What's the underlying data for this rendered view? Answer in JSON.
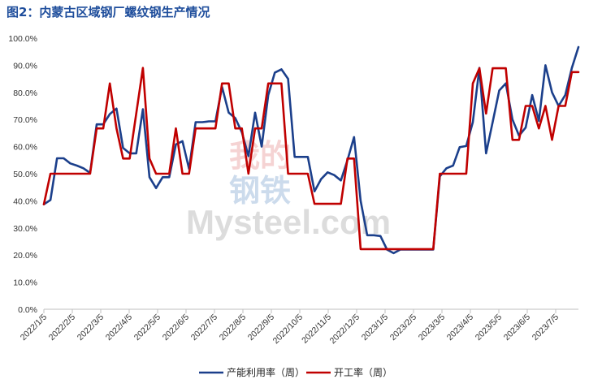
{
  "title": "图2：内蒙古区域钢厂螺纹钢生产情况",
  "watermark": {
    "cn1": "我的",
    "cn2": "钢铁",
    "brand": "Mysteel.com"
  },
  "colors": {
    "capacity": "#1b3f8b",
    "operating": "#c00000",
    "axis": "#bfbfbf",
    "title": "#1f4e9c"
  },
  "chart_data": {
    "type": "line",
    "title": "图2：内蒙古区域钢厂螺纹钢生产情况",
    "xlabel": "",
    "ylabel": "",
    "ylim": [
      0,
      100
    ],
    "y_ticks": [
      "0.0%",
      "10.0%",
      "20.0%",
      "30.0%",
      "40.0%",
      "50.0%",
      "60.0%",
      "70.0%",
      "80.0%",
      "90.0%",
      "100.0%"
    ],
    "x_tick_labels": [
      "2022/1/5",
      "2022/2/5",
      "2022/3/5",
      "2022/4/5",
      "2022/5/5",
      "2022/6/5",
      "2022/7/5",
      "2022/8/5",
      "2022/9/5",
      "2022/10/5",
      "2022/11/5",
      "2022/12/5",
      "2023/1/5",
      "2023/2/5",
      "2023/3/5",
      "2023/4/5",
      "2023/5/5",
      "2023/6/5",
      "2023/7/5"
    ],
    "legend_position": "bottom",
    "grid": false,
    "series": [
      {
        "name": "产能利用率（周）",
        "color": "#1b3f8b",
        "values": [
          38.7,
          40.3,
          55.7,
          55.7,
          53.8,
          53.0,
          52.0,
          50.3,
          68.2,
          68.2,
          72.0,
          74.0,
          59.5,
          57.5,
          57.5,
          73.8,
          48.7,
          44.7,
          48.7,
          48.7,
          60.8,
          62.0,
          51.8,
          69.0,
          69.0,
          69.3,
          69.3,
          82.0,
          72.5,
          70.5,
          65.3,
          56.5,
          72.5,
          60.0,
          79.0,
          87.3,
          88.5,
          85.0,
          56.2,
          56.2,
          56.2,
          43.5,
          48.0,
          50.5,
          49.5,
          47.5,
          55.0,
          63.5,
          40.0,
          27.3,
          27.3,
          27.0,
          22.0,
          20.7,
          22.0,
          22.0,
          22.0,
          22.0,
          22.0,
          22.0,
          49.0,
          52.0,
          53.0,
          59.8,
          60.2,
          69.0,
          89.0,
          57.5,
          69.0,
          80.7,
          83.3,
          70.0,
          64.0,
          67.0,
          79.0,
          69.5,
          90.0,
          80.0,
          75.0,
          79.0,
          89.0,
          96.7
        ]
      },
      {
        "name": "开工率（周）",
        "color": "#c00000",
        "values": [
          38.7,
          50.0,
          50.0,
          50.0,
          50.0,
          50.0,
          50.0,
          50.0,
          66.7,
          66.7,
          83.3,
          66.7,
          55.6,
          55.6,
          72.2,
          89.0,
          55.6,
          50.0,
          50.0,
          50.0,
          66.7,
          50.0,
          50.0,
          66.7,
          66.7,
          66.7,
          66.7,
          83.3,
          83.3,
          66.7,
          66.7,
          50.0,
          66.7,
          66.7,
          83.3,
          83.3,
          83.3,
          50.0,
          50.0,
          50.0,
          50.0,
          38.9,
          38.9,
          38.9,
          38.9,
          38.9,
          55.6,
          55.6,
          22.2,
          22.2,
          22.2,
          22.2,
          22.2,
          22.2,
          22.2,
          22.2,
          22.2,
          22.2,
          22.2,
          22.2,
          50.0,
          50.0,
          50.0,
          50.0,
          50.0,
          83.3,
          88.9,
          72.2,
          88.9,
          88.9,
          88.9,
          62.5,
          62.5,
          75.0,
          75.0,
          66.7,
          75.0,
          62.5,
          75.0,
          75.0,
          87.5,
          87.5
        ]
      }
    ]
  }
}
